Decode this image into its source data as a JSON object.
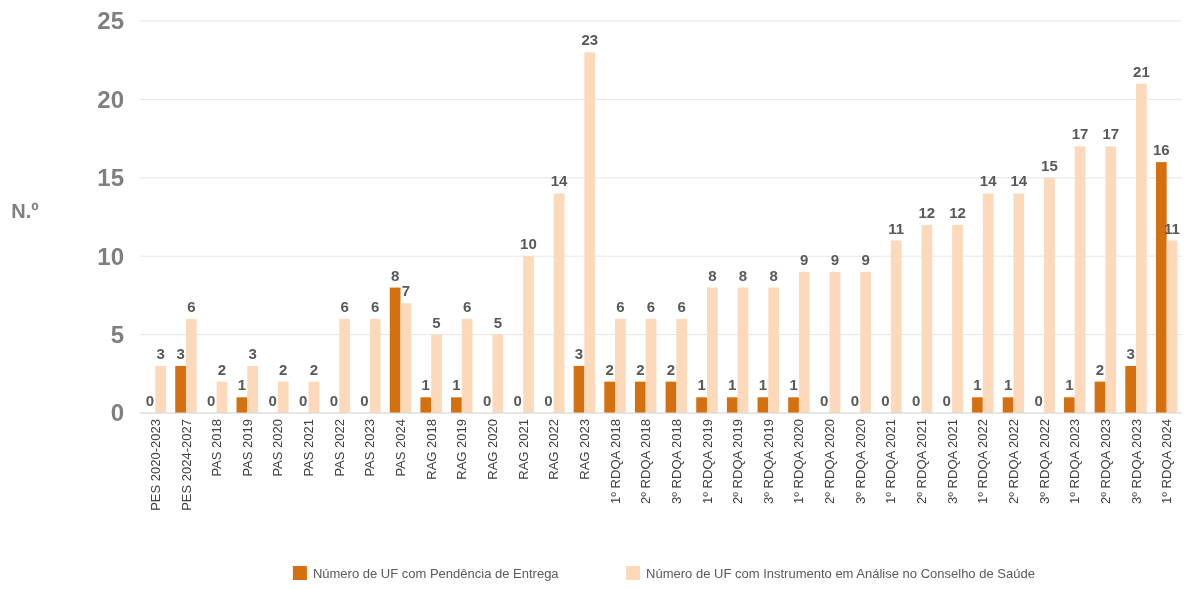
{
  "chart_data": {
    "type": "bar",
    "ylabel": "N.º",
    "categories": [
      "PES 2020-2023",
      "PES 2024-2027",
      "PAS 2018",
      "PAS 2019",
      "PAS 2020",
      "PAS 2021",
      "PAS 2022",
      "PAS 2023",
      "PAS 2024",
      "RAG 2018",
      "RAG 2019",
      "RAG 2020",
      "RAG 2021",
      "RAG 2022",
      "RAG 2023",
      "1º RDQA 2018",
      "2º RDQA 2018",
      "3º RDQA 2018",
      "1º RDQA 2019",
      "2º RDQA 2019",
      "3º RDQA 2019",
      "1º RDQA 2020",
      "2º RDQA 2020",
      "3º RDQA 2020",
      "1º RDQA 2021",
      "2º RDQA 2021",
      "3º RDQA 2021",
      "1º RDQA 2022",
      "2º RDQA 2022",
      "3º RDQA 2022",
      "1º RDQA 2023",
      "2º RDQA 2023",
      "3º RDQA 2023",
      "1º RDQA 2024"
    ],
    "series": [
      {
        "name": "Número de UF com Pendência de Entrega",
        "color": "#d4700f",
        "values": [
          0,
          3,
          0,
          1,
          0,
          0,
          0,
          0,
          8,
          1,
          1,
          0,
          0,
          0,
          3,
          2,
          2,
          2,
          1,
          1,
          1,
          1,
          0,
          0,
          0,
          0,
          0,
          1,
          1,
          0,
          1,
          2,
          3,
          16
        ]
      },
      {
        "name": "Número de UF com Instrumento em Análise no Conselho de Saúde",
        "color": "#fbd9ba",
        "values": [
          3,
          6,
          2,
          3,
          2,
          2,
          6,
          6,
          7,
          5,
          6,
          5,
          10,
          14,
          23,
          6,
          6,
          6,
          8,
          8,
          8,
          9,
          9,
          9,
          11,
          12,
          12,
          14,
          14,
          15,
          17,
          17,
          21,
          11
        ]
      }
    ],
    "ylim": [
      0,
      25
    ],
    "yticks": [
      0,
      5,
      10,
      15,
      20,
      25
    ],
    "grid": "y",
    "legend": "bottom",
    "data_labels": true
  }
}
